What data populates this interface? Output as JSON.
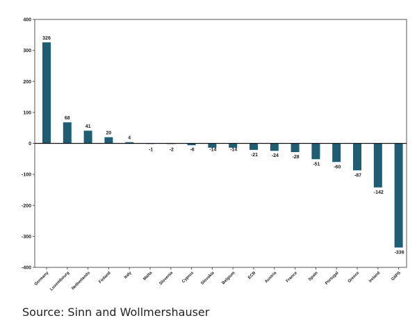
{
  "chart_data": {
    "type": "bar",
    "title": "",
    "xlabel": "",
    "ylabel": "",
    "categories": [
      "Germany",
      "Luxembourg",
      "Netherlands",
      "Finland",
      "Italy",
      "Malta",
      "Slovenia",
      "Cyprus",
      "Slovakia",
      "Belgium",
      "ECB",
      "Austria",
      "France",
      "Spain",
      "Portugal",
      "Greece",
      "Ireland",
      "GIIPS"
    ],
    "values": [
      326,
      68,
      41,
      20,
      4,
      -1,
      -2,
      -6,
      -14,
      -14,
      -21,
      -24,
      -28,
      -51,
      -60,
      -87,
      -142,
      -336
    ],
    "data_labels": [
      "326",
      "68",
      "41",
      "20",
      "4",
      "-1",
      "-2",
      "-6",
      "-14",
      "-14",
      "-21",
      "-24",
      "-28",
      "-51",
      "-60",
      "-87",
      "-142",
      "-336"
    ],
    "ylim": [
      -400,
      400
    ],
    "yticks": [
      400,
      300,
      200,
      100,
      0,
      -100,
      -200,
      -300,
      -400
    ],
    "bar_color": "#1f5d75",
    "grid": false,
    "legend": "none"
  },
  "source": "Source: Sinn and Wollmershauser"
}
